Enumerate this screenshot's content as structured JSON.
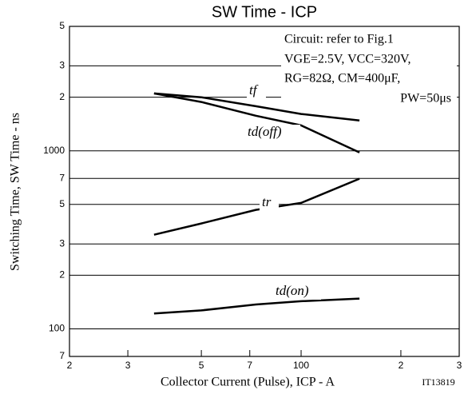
{
  "chart_data": {
    "type": "line",
    "title": "SW Time - ICP",
    "x_label": "Collector Current (Pulse), ICP - A",
    "y_label": "Switching Time, SW Time - ns",
    "figure_id": "IT13819",
    "annotations": [
      "Circuit: refer to Fig.1",
      "VGE=2.5V, VCC=320V,",
      "RG=82Ω, CM=400μF,",
      "PW=50μs"
    ],
    "log_x": true,
    "log_y": true,
    "grid": true,
    "x": [
      36,
      50,
      73,
      100,
      150
    ],
    "series": [
      {
        "name": "tf",
        "color": "#000000",
        "values": [
          2100,
          2000,
          1780,
          1610,
          1480
        ]
      },
      {
        "name": "td(off)",
        "color": "#000000",
        "values": [
          2100,
          1880,
          1575,
          1390,
          980
        ]
      },
      {
        "name": "tr",
        "color": "#000000",
        "values": [
          338,
          391,
          466,
          510,
          697
        ]
      },
      {
        "name": "td(on)",
        "color": "#000000",
        "values": [
          122,
          127,
          137,
          143,
          148
        ]
      }
    ],
    "xlim": [
      20,
      300
    ],
    "xticks": [
      {
        "value": 20,
        "label": "2"
      },
      {
        "value": 30,
        "label": "3"
      },
      {
        "value": 50,
        "label": "5"
      },
      {
        "value": 70,
        "label": "7"
      },
      100,
      {
        "value": 200,
        "label": "2"
      },
      {
        "value": 300,
        "label": "3"
      }
    ],
    "ylim": [
      70,
      5000
    ],
    "yticks": [
      {
        "value": 70,
        "label": "7"
      },
      100,
      {
        "value": 200,
        "label": "2"
      },
      {
        "value": 300,
        "label": "3"
      },
      {
        "value": 500,
        "label": "5"
      },
      {
        "value": 700,
        "label": "7"
      },
      1000,
      {
        "value": 2000,
        "label": "2"
      },
      {
        "value": 3000,
        "label": "3"
      },
      {
        "value": 5000,
        "label": "5"
      }
    ]
  }
}
